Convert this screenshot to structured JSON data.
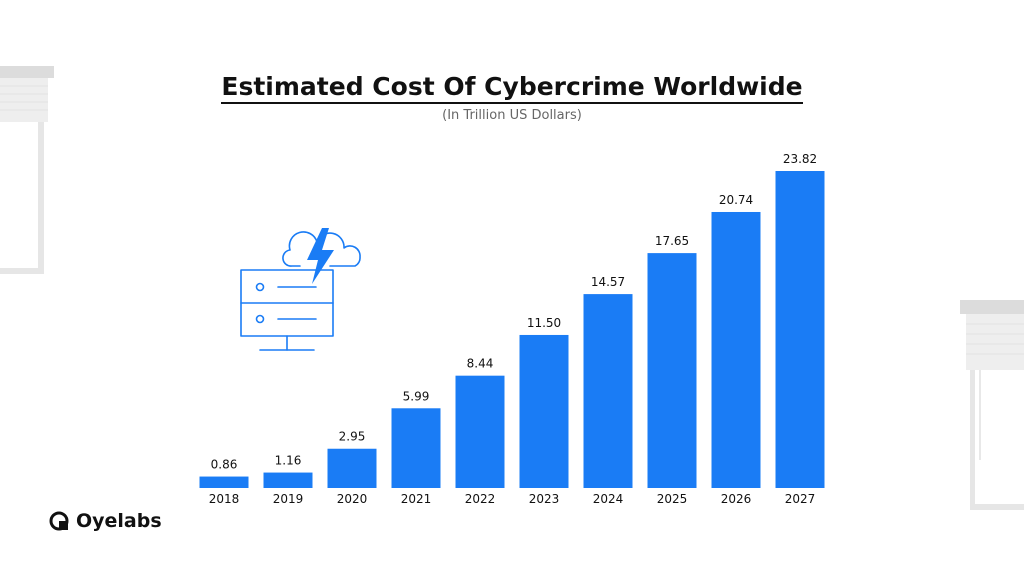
{
  "title": "Estimated Cost Of Cybercrime Worldwide",
  "subtitle": "(In Trillion US Dollars)",
  "brand": {
    "name": "Oyelabs",
    "icon": "oyelabs-logo-icon"
  },
  "colors": {
    "bar": "#1a7cf5",
    "text": "#111111",
    "subtitle": "#666666",
    "icon_stroke": "#1a7cf5"
  },
  "illustration": {
    "icon": "server-cloud-lightning-icon"
  },
  "chart_data": {
    "type": "bar",
    "title": "Estimated Cost Of Cybercrime Worldwide",
    "subtitle": "(In Trillion US Dollars)",
    "categories": [
      "2018",
      "2019",
      "2020",
      "2021",
      "2022",
      "2023",
      "2024",
      "2025",
      "2026",
      "2027"
    ],
    "values": [
      0.86,
      1.16,
      2.95,
      5.99,
      8.44,
      11.5,
      14.57,
      17.65,
      20.74,
      23.82
    ],
    "value_labels": [
      "0.86",
      "1.16",
      "2.95",
      "5.99",
      "8.44",
      "11.50",
      "14.57",
      "17.65",
      "20.74",
      "23.82"
    ],
    "xlabel": "",
    "ylabel": "",
    "ylim": [
      0,
      23.82
    ],
    "grid": false,
    "legend": "none",
    "data_labels": "above"
  }
}
